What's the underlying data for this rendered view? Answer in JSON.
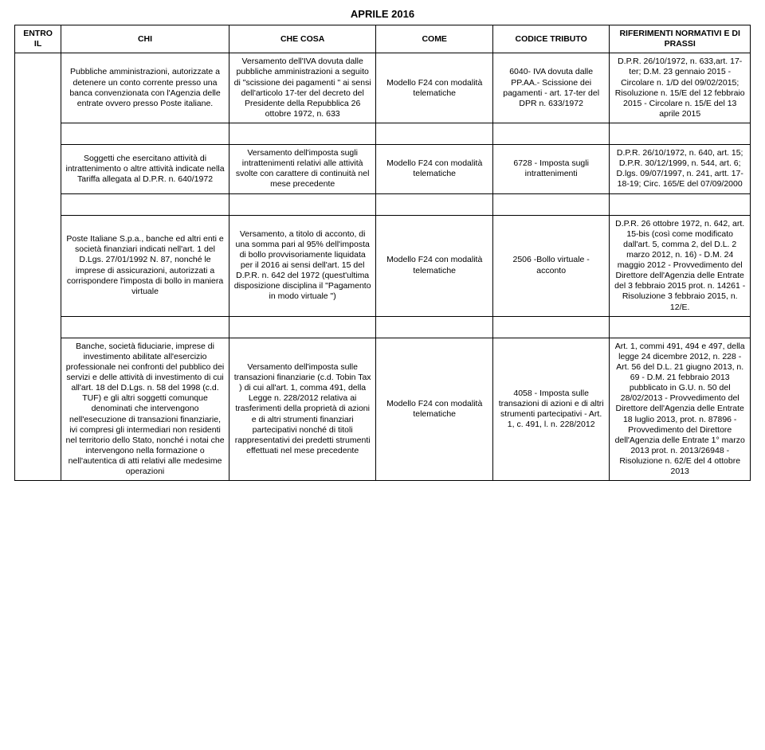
{
  "title": "APRILE 2016",
  "headers": {
    "entro": "ENTRO IL",
    "chi": "CHI",
    "cosa": "CHE COSA",
    "come": "COME",
    "codice": "CODICE TRIBUTO",
    "rif": "RIFERIMENTI NORMATIVI E DI PRASSI"
  },
  "rows": [
    {
      "chi": "Pubbliche amministrazioni, autorizzate a detenere un conto corrente presso una banca convenzionata con l'Agenzia delle entrate ovvero presso Poste italiane.",
      "cosa": "Versamento dell'IVA dovuta dalle pubbliche amministrazioni a seguito di \"scissione dei pagamenti \" ai sensi dell'articolo 17-ter del decreto del Presidente della Repubblica 26 ottobre 1972, n. 633",
      "come": "Modello F24 con modalità telematiche",
      "codice": "6040- IVA dovuta dalle PP.AA.- Scissione dei pagamenti - art. 17-ter del DPR n. 633/1972",
      "rif": "D.P.R. 26/10/1972, n. 633,art. 17-ter; D.M. 23 gennaio 2015 - Circolare n. 1/D del 09/02/2015; Risoluzione n. 15/E del 12 febbraio 2015 - Circolare n. 15/E del 13 aprile 2015"
    },
    {
      "chi": "Soggetti che esercitano attività di intrattenimento o altre attività indicate nella Tariffa allegata al D.P.R. n. 640/1972",
      "cosa": "Versamento dell'imposta sugli intrattenimenti relativi alle attività svolte con carattere di continuità nel mese precedente",
      "come": "Modello F24 con modalità telematiche",
      "codice": "6728 - Imposta sugli intrattenimenti",
      "rif": "D.P.R. 26/10/1972, n. 640, art. 15; D.P.R. 30/12/1999, n. 544, art. 6; D.lgs. 09/07/1997, n. 241, artt. 17-18-19; Circ. 165/E del 07/09/2000"
    },
    {
      "chi": "Poste Italiane S.p.a., banche ed altri enti e società finanziari indicati nell'art. 1 del D.Lgs. 27/01/1992 N. 87, nonché le imprese di assicurazioni, autorizzati a corrispondere l'imposta di bollo in maniera virtuale",
      "cosa": "Versamento, a titolo di acconto, di una somma pari al 95% dell'imposta di bollo provvisoriamente liquidata per il 2016 ai sensi dell'art. 15 del D.P.R. n. 642 del 1972 (quest'ultima disposizione disciplina il \"Pagamento in modo virtuale \")",
      "come": "Modello F24 con modalità telematiche",
      "codice": "2506 -Bollo virtuale - acconto",
      "rif": "D.P.R. 26 ottobre 1972, n. 642, art. 15-bis (così come modificato dall'art. 5, comma 2, del D.L. 2 marzo 2012, n. 16) - D.M. 24 maggio 2012 - Provvedimento del Direttore dell'Agenzia delle Entrate del 3 febbraio 2015 prot. n. 14261 - Risoluzione 3 febbraio 2015, n. 12/E."
    },
    {
      "chi": "Banche, società fiduciarie, imprese di investimento abilitate all'esercizio professionale nei confronti del pubblico dei servizi e delle attività di investimento di cui all'art. 18 del D.Lgs. n. 58 del 1998 (c.d. TUF) e gli altri soggetti comunque denominati che intervengono nell'esecuzione di transazioni finanziarie, ivi compresi gli intermediari non residenti nel territorio dello Stato, nonché i notai che intervengono nella formazione o nell'autentica di atti relativi alle medesime operazioni",
      "cosa": "Versamento dell'imposta sulle transazioni finanziarie (c.d. Tobin Tax ) di cui all'art. 1, comma 491, della Legge n. 228/2012 relativa ai trasferimenti della proprietà di azioni e di altri strumenti finanziari partecipativi nonché di titoli rappresentativi dei predetti strumenti effettuati nel mese precedente",
      "come": "Modello F24 con modalità telematiche",
      "codice": "4058 - Imposta sulle transazioni di azioni e di altri strumenti partecipativi - Art. 1, c. 491, l. n. 228/2012",
      "rif": "Art. 1, commi 491, 494 e 497, della legge 24 dicembre 2012, n. 228 - Art. 56 del D.L. 21 giugno 2013, n. 69 - D.M. 21 febbraio 2013 pubblicato in G.U. n. 50 del 28/02/2013 - Provvedimento del Direttore dell'Agenzia delle Entrate 18 luglio 2013, prot. n. 87896 - Provvedimento del Direttore dell'Agenzia delle Entrate 1° marzo 2013 prot. n. 2013/26948 - Risoluzione n. 62/E del 4 ottobre 2013"
    }
  ]
}
